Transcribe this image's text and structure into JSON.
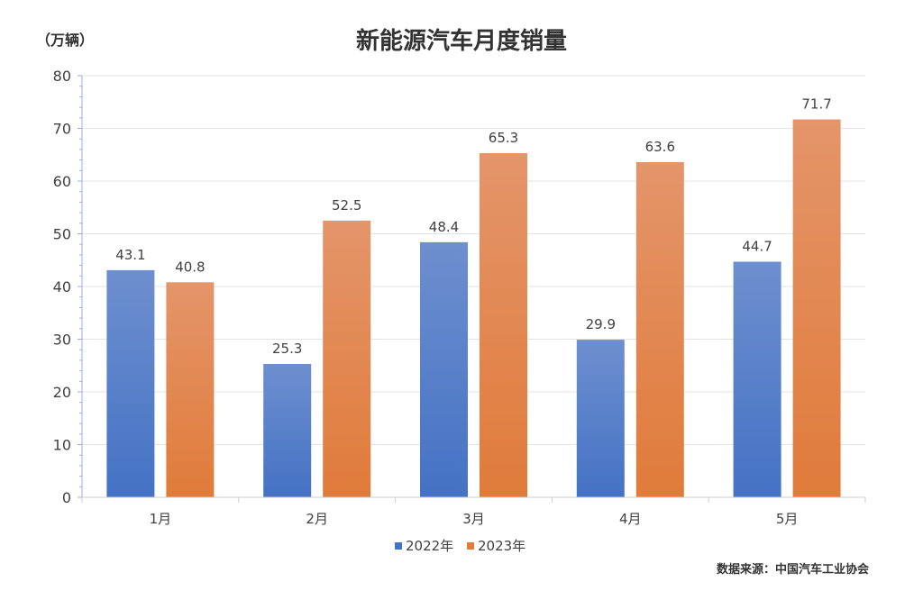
{
  "chart_data": {
    "type": "bar",
    "title": "新能源汽车月度销量",
    "ylabel": "（万辆）",
    "xlabel": "",
    "categories": [
      "1月",
      "2月",
      "3月",
      "4月",
      "5月"
    ],
    "series": [
      {
        "name": "2022年",
        "values": [
          43.1,
          25.3,
          48.4,
          29.9,
          44.7
        ],
        "color": "#4472C4",
        "color_light": "#6E8FCF"
      },
      {
        "name": "2023年",
        "values": [
          40.8,
          52.5,
          65.3,
          63.6,
          71.7
        ],
        "color": "#E07B3A",
        "color_light": "#E4956A"
      }
    ],
    "ylim": [
      0,
      80
    ],
    "yticks": [
      0,
      10,
      20,
      30,
      40,
      50,
      60,
      70,
      80
    ],
    "grid": true,
    "legend": "bottom-center",
    "source": "数据来源：中国汽车工业协会"
  }
}
